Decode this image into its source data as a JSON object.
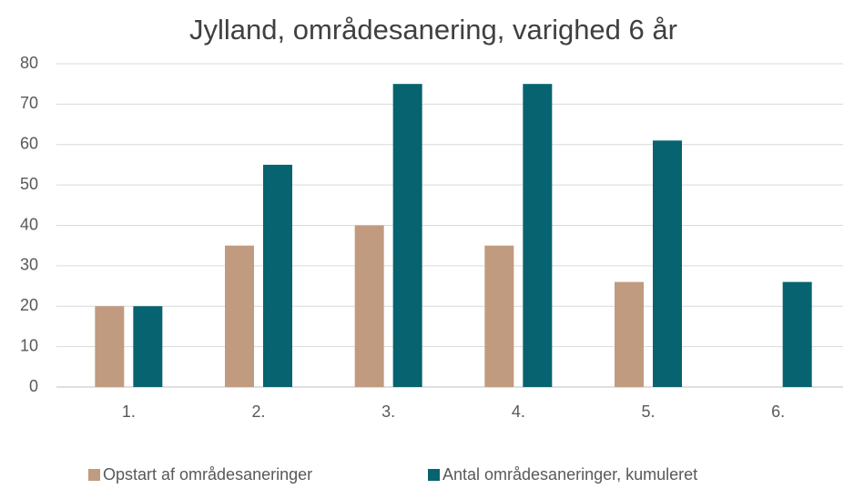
{
  "chart_data": {
    "type": "bar",
    "title": "Jylland, områdesanering, varighed 6 år",
    "categories": [
      "1.",
      "2.",
      "3.",
      "4.",
      "5.",
      "6."
    ],
    "series": [
      {
        "name": "Opstart af områdesaneringer",
        "color": "#c09b80",
        "values": [
          20,
          35,
          40,
          35,
          26,
          0
        ]
      },
      {
        "name": "Antal områdesaneringer, kumuleret",
        "color": "#07636f",
        "values": [
          20,
          55,
          75,
          75,
          61,
          26
        ]
      }
    ],
    "ylim": [
      0,
      80
    ],
    "yticks": [
      0,
      10,
      20,
      30,
      40,
      50,
      60,
      70,
      80
    ],
    "grid": true,
    "legend": "bottom"
  }
}
